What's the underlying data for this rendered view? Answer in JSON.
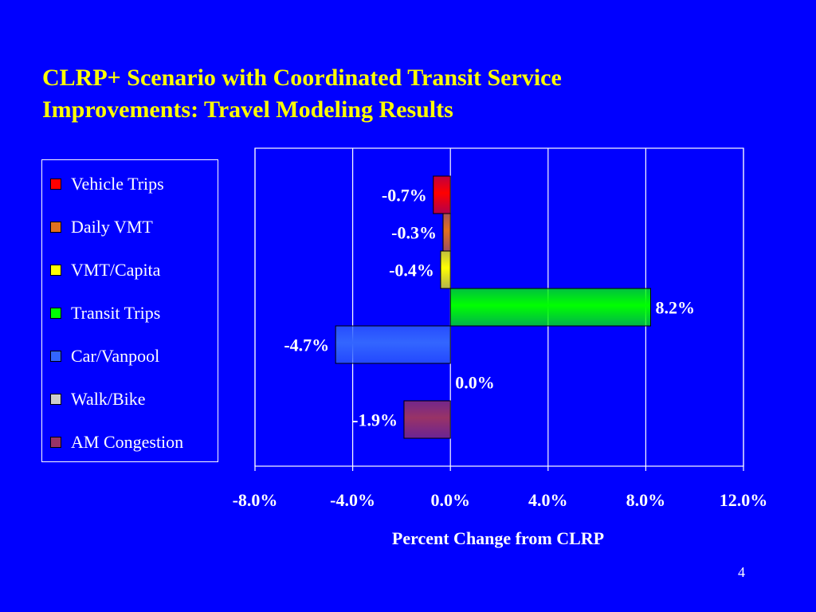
{
  "slide": {
    "title_line1": "CLRP+ Scenario with Coordinated Transit Service",
    "title_line2": "Improvements: Travel Modeling Results",
    "page_number": "4"
  },
  "colors": {
    "background": "#0000ff",
    "title": "#ffff00",
    "text": "#ffffff"
  },
  "chart_data": {
    "type": "bar",
    "orientation": "horizontal",
    "title": "",
    "xlabel": "Percent Change from CLRP",
    "ylabel": "",
    "xlim": [
      -8.0,
      12.0
    ],
    "x_ticks": [
      -8.0,
      -4.0,
      0.0,
      4.0,
      8.0,
      12.0
    ],
    "x_tick_labels": [
      "-8.0%",
      "-4.0%",
      "0.0%",
      "4.0%",
      "8.0%",
      "12.0%"
    ],
    "grid": true,
    "legend_position": "left",
    "series": [
      {
        "name": "Vehicle Trips",
        "value": -0.7,
        "label": "-0.7%",
        "color": "#ff0000"
      },
      {
        "name": "Daily VMT",
        "value": -0.3,
        "label": "-0.3%",
        "color": "#e07020"
      },
      {
        "name": "VMT/Capita",
        "value": -0.4,
        "label": "-0.4%",
        "color": "#ffff00"
      },
      {
        "name": "Transit Trips",
        "value": 8.2,
        "label": "8.2%",
        "color": "#00ff00"
      },
      {
        "name": "Car/Vanpool",
        "value": -4.7,
        "label": "-4.7%",
        "color": "#3366ff"
      },
      {
        "name": "Walk/Bike",
        "value": 0.0,
        "label": "0.0%",
        "color": "#cccccc"
      },
      {
        "name": "AM Congestion",
        "value": -1.9,
        "label": "-1.9%",
        "color": "#993366"
      }
    ]
  }
}
